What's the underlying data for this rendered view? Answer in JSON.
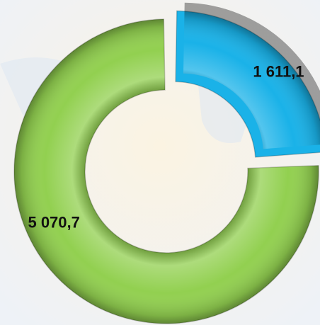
{
  "chart_data": {
    "type": "donut",
    "categories": [
      null,
      null
    ],
    "values": [
      1611.1,
      5070.7
    ],
    "value_labels": [
      "1 611,1",
      "5 070,7"
    ],
    "colors": [
      "#1ab2e8",
      "#92d050"
    ],
    "exploded": [
      true,
      false
    ]
  }
}
